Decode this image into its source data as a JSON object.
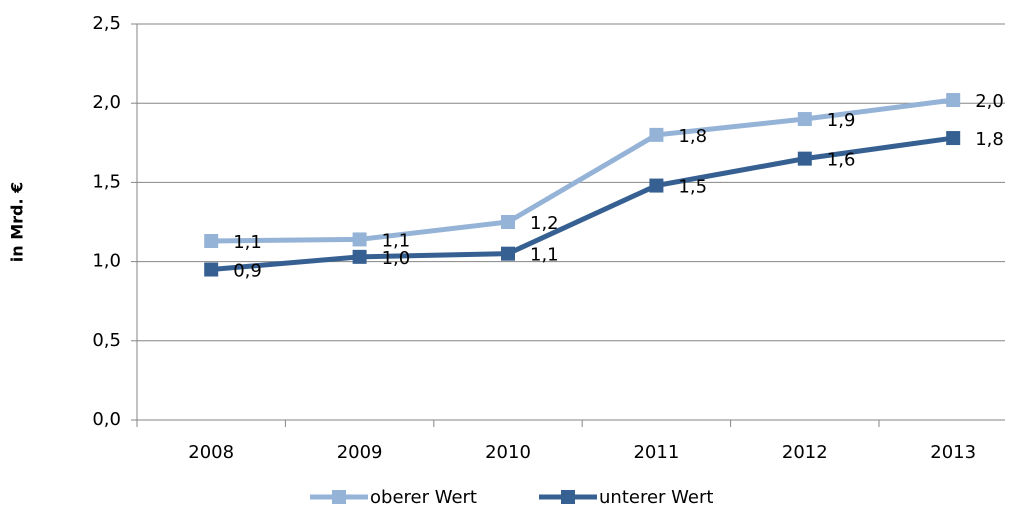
{
  "chart_data": {
    "type": "line",
    "y_label": "in Mrd. €",
    "categories": [
      "2008",
      "2009",
      "2010",
      "2011",
      "2012",
      "2013"
    ],
    "series": [
      {
        "name": "oberer Wert",
        "color": "#95b3d7",
        "values": [
          1.13,
          1.14,
          1.25,
          1.8,
          1.9,
          2.02
        ],
        "value_labels": [
          "1,1",
          "1,1",
          "1,2",
          "1,8",
          "1,9",
          "2,0"
        ]
      },
      {
        "name": "unterer Wert",
        "color": "#376092",
        "values": [
          0.95,
          1.03,
          1.05,
          1.48,
          1.65,
          1.78
        ],
        "value_labels": [
          "0,9",
          "1,0",
          "1,1",
          "1,5",
          "1,6",
          "1,8"
        ]
      }
    ],
    "ylim": [
      0,
      2.5
    ],
    "yticks": [
      {
        "value": 0,
        "label": "0,0"
      },
      {
        "value": 0.5,
        "label": "0,5"
      },
      {
        "value": 1,
        "label": "1,0"
      },
      {
        "value": 1.5,
        "label": "1,5"
      },
      {
        "value": 2,
        "label": "2,0"
      },
      {
        "value": 2.5,
        "label": "2,5"
      }
    ],
    "grid": true,
    "legend": "bottom"
  }
}
